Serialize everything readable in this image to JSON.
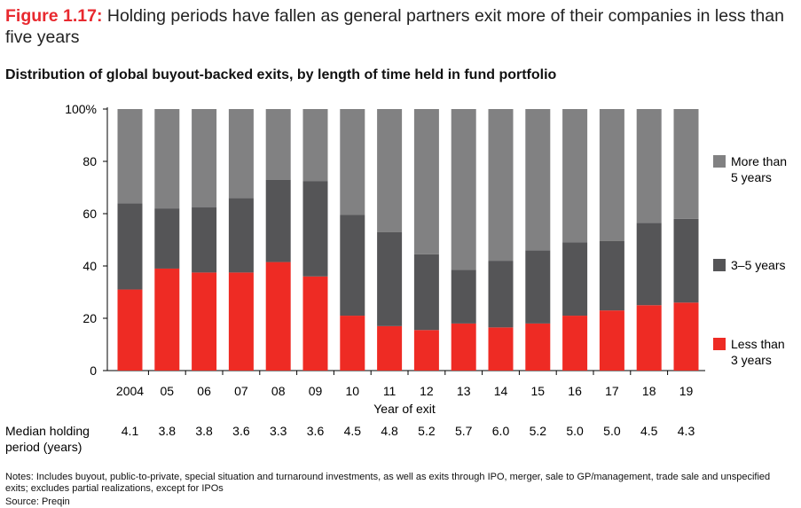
{
  "figure": {
    "label": "Figure 1.17:",
    "title": "Holding periods have fallen as general partners exit more of their companies in less than five years",
    "subtitle": "Distribution of global buyout-backed exits, by length of time held in fund portfolio",
    "notes": "Notes: Includes buyout, public-to-private, special situation and turnaround investments, as well as exits through IPO, merger, sale to GP/management, trade sale and unspecified exits; excludes partial realizations, except for IPOs",
    "source": "Source: Preqin"
  },
  "chart_data": {
    "type": "bar",
    "stacked": true,
    "categories": [
      "2004",
      "05",
      "06",
      "07",
      "08",
      "09",
      "10",
      "11",
      "12",
      "13",
      "14",
      "15",
      "16",
      "17",
      "18",
      "19"
    ],
    "xlabel": "Year of exit",
    "ylabel": "",
    "ylim": [
      0,
      100
    ],
    "yticks": [
      "0",
      "20",
      "40",
      "60",
      "80",
      "100%"
    ],
    "grid": false,
    "legend_position": "right",
    "series": [
      {
        "name": "Less than 3 years",
        "legend_lines": [
          "Less than",
          "3 years"
        ],
        "color": "#ee2b24",
        "values": [
          31,
          39,
          37.5,
          37.5,
          41.5,
          36,
          21,
          17,
          15.5,
          18,
          16.5,
          18,
          21,
          23,
          25,
          26
        ]
      },
      {
        "name": "3–5 years",
        "legend_lines": [
          "3–5 years"
        ],
        "color": "#555557",
        "values": [
          33,
          23,
          25,
          28.5,
          31.5,
          36.5,
          38.5,
          36,
          29,
          20.5,
          25.5,
          28,
          28,
          26.5,
          31.5,
          32
        ]
      },
      {
        "name": "More than 5 years",
        "legend_lines": [
          "More than",
          "5 years"
        ],
        "color": "#818182",
        "values": [
          36,
          38,
          37.5,
          34,
          27,
          27.5,
          40.5,
          47,
          55.5,
          61.5,
          58,
          54,
          51,
          50.5,
          43.5,
          42
        ]
      }
    ],
    "median_row": {
      "label_lines": [
        "Median holding",
        "period (years)"
      ],
      "values": [
        "4.1",
        "3.8",
        "3.8",
        "3.6",
        "3.3",
        "3.6",
        "4.5",
        "4.8",
        "5.2",
        "5.7",
        "6.0",
        "5.2",
        "5.0",
        "5.0",
        "4.5",
        "4.3"
      ]
    }
  }
}
